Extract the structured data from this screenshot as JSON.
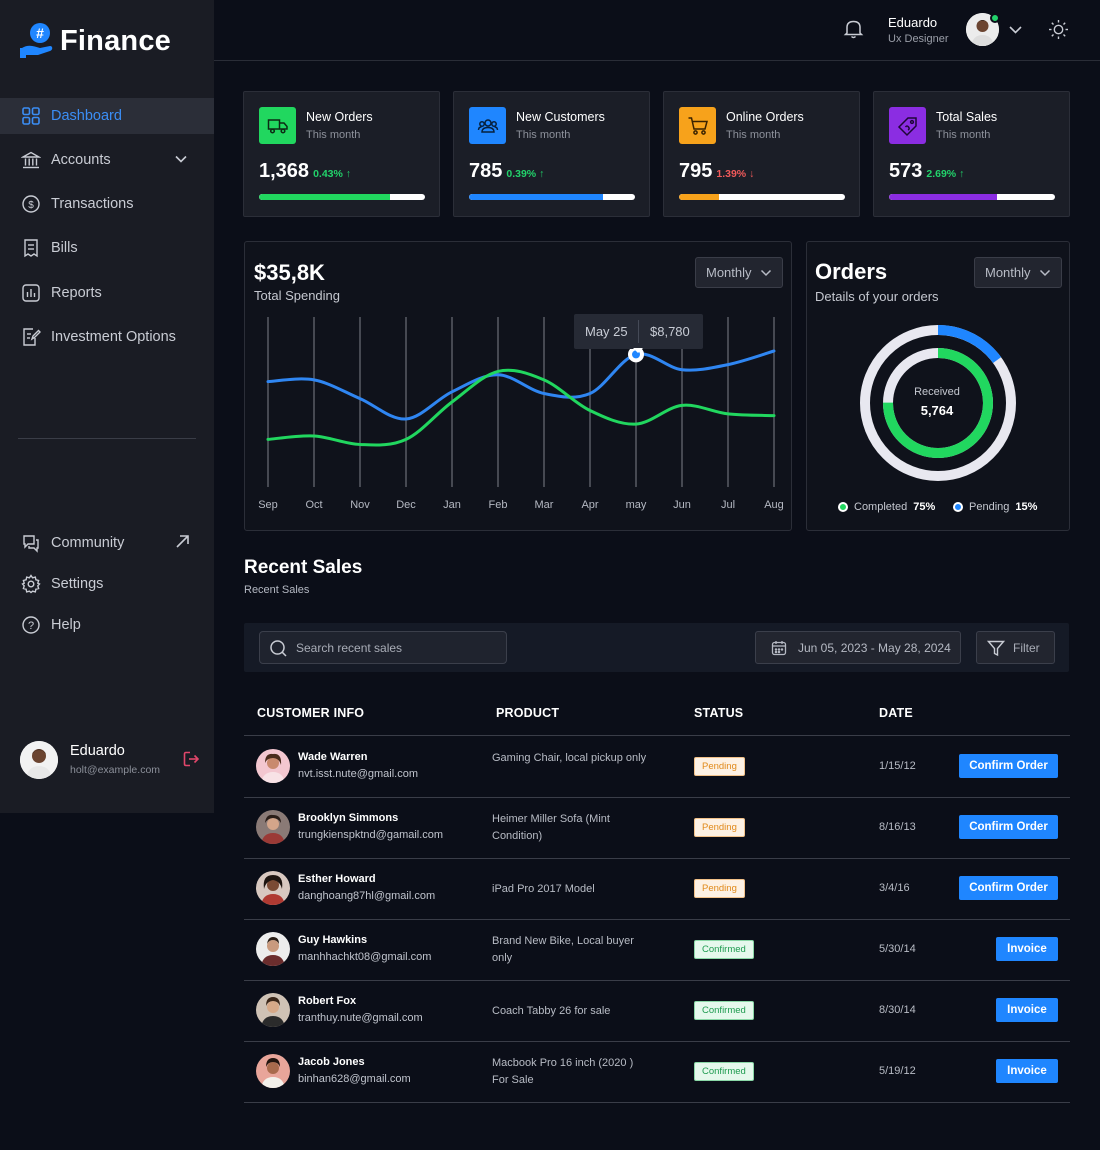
{
  "app": {
    "name": "Finance"
  },
  "sidebar": {
    "items": [
      {
        "label": "Dashboard",
        "icon": "grid-icon"
      },
      {
        "label": "Accounts",
        "icon": "bank-icon"
      },
      {
        "label": "Transactions",
        "icon": "coin-icon"
      },
      {
        "label": "Bills",
        "icon": "receipt-icon"
      },
      {
        "label": "Reports",
        "icon": "bar-chart-icon"
      },
      {
        "label": "Investment Options",
        "icon": "edit-doc-icon"
      }
    ],
    "bottom_items": [
      {
        "label": "Community",
        "icon": "chat-icon"
      },
      {
        "label": "Settings",
        "icon": "gear-icon"
      },
      {
        "label": "Help",
        "icon": "help-icon"
      }
    ],
    "user": {
      "name": "Eduardo",
      "email": "holt@example.com"
    }
  },
  "topbar": {
    "user_name": "Eduardo",
    "user_role": "Ux Designer"
  },
  "stats": [
    {
      "title": "New Orders",
      "sub": "This month",
      "value": "1,368",
      "change": "0.43%",
      "trend": "up",
      "progress": 0.79,
      "color": "#21d75f",
      "change_color": "#22d36b"
    },
    {
      "title": "New Customers",
      "sub": "This month",
      "value": "785",
      "change": "0.39%",
      "trend": "up",
      "progress": 0.81,
      "color": "#1f86ff",
      "change_color": "#22d36b"
    },
    {
      "title": "Online Orders",
      "sub": "This month",
      "value": "795",
      "change": "1.39%",
      "trend": "down",
      "progress": 0.24,
      "color": "#f7a21b",
      "change_color": "#f05a5a"
    },
    {
      "title": "Total Sales",
      "sub": "This month",
      "value": "573",
      "change": "2.69%",
      "trend": "up",
      "progress": 0.65,
      "color": "#8b2de2",
      "change_color": "#22d36b"
    }
  ],
  "spending": {
    "value": "$35,8K",
    "label": "Total Spending",
    "period": "Monthly",
    "tooltip": {
      "date": "May 25",
      "amount": "$8,780"
    }
  },
  "orders": {
    "title": "Orders",
    "subtitle": "Details of your orders",
    "period": "Monthly",
    "center_label": "Received",
    "center_value": "5,764",
    "legend": [
      {
        "label": "Completed",
        "value": "75%",
        "color": "#21d75f"
      },
      {
        "label": "Pending",
        "value": "15%",
        "color": "#1f86ff"
      }
    ]
  },
  "chart_data": {
    "type": "line",
    "x": [
      "Sep",
      "Oct",
      "Nov",
      "Dec",
      "Jan",
      "Feb",
      "Mar",
      "Apr",
      "may",
      "Jun",
      "Jul",
      "Aug"
    ],
    "series": [
      {
        "values": [
          62,
          63,
          52,
          40,
          56,
          66,
          55,
          55,
          78,
          69,
          72,
          80
        ],
        "color": "#2f86f2"
      },
      {
        "values": [
          28,
          30,
          25,
          28,
          50,
          68,
          63,
          45,
          37,
          48,
          43,
          42
        ],
        "color": "#21d75f"
      }
    ],
    "ylim": [
      0,
      100
    ]
  },
  "recent_sales": {
    "title": "Recent Sales",
    "subtitle": "Recent Sales",
    "search_placeholder": "Search recent sales",
    "date_range": "Jun 05, 2023 - May 28, 2024",
    "filter_label": "Filter",
    "columns": [
      "CUSTOMER INFO",
      "PRODUCT",
      "STATUS",
      "DATE"
    ],
    "rows": [
      {
        "name": "Wade Warren",
        "email": "nvt.isst.nute@gmail.com",
        "product": "Gaming Chair, local pickup only",
        "status": "Pending",
        "date": "1/15/12",
        "action": "Confirm Order"
      },
      {
        "name": "Brooklyn Simmons",
        "email": "trungkienspktnd@gamail.com",
        "product": "Heimer Miller Sofa (Mint Condition)",
        "status": "Pending",
        "date": "8/16/13",
        "action": "Confirm Order"
      },
      {
        "name": "Esther Howard",
        "email": "danghoang87hl@gmail.com",
        "product": "iPad Pro 2017 Model",
        "status": "Pending",
        "date": "3/4/16",
        "action": "Confirm Order"
      },
      {
        "name": "Guy Hawkins",
        "email": "manhhachkt08@gmail.com",
        "product": "Brand New Bike, Local buyer only",
        "status": "Confirmed",
        "date": "5/30/14",
        "action": "Invoice"
      },
      {
        "name": "Robert Fox",
        "email": "tranthuy.nute@gmail.com",
        "product": "Coach Tabby 26 for sale",
        "status": "Confirmed",
        "date": "8/30/14",
        "action": "Invoice"
      },
      {
        "name": "Jacob Jones",
        "email": "binhan628@gmail.com",
        "product": "Macbook Pro 16 inch (2020 ) For Sale",
        "status": "Confirmed",
        "date": "5/19/12",
        "action": "Invoice"
      }
    ]
  }
}
